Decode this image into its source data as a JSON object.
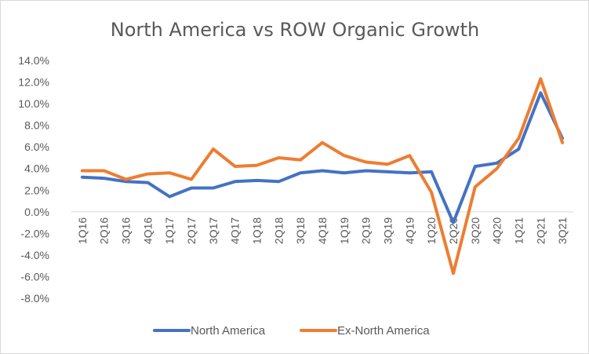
{
  "chart_data": {
    "type": "line",
    "title": "North America vs ROW Organic Growth",
    "xlabel": "",
    "ylabel": "",
    "categories": [
      "1Q16",
      "2Q16",
      "3Q16",
      "4Q16",
      "1Q17",
      "2Q17",
      "3Q17",
      "4Q17",
      "1Q18",
      "2Q18",
      "3Q18",
      "4Q18",
      "1Q19",
      "2Q19",
      "3Q19",
      "4Q19",
      "1Q20",
      "2Q20",
      "3Q20",
      "4Q20",
      "1Q21",
      "2Q21",
      "3Q21"
    ],
    "ylim": [
      -8,
      14
    ],
    "yticks": [
      -8,
      -6,
      -4,
      -2,
      0,
      2,
      4,
      6,
      8,
      10,
      12,
      14
    ],
    "ytick_labels": [
      "-8.0%",
      "-6.0%",
      "-4.0%",
      "-2.0%",
      "0.0%",
      "2.0%",
      "4.0%",
      "6.0%",
      "8.0%",
      "10.0%",
      "12.0%",
      "14.0%"
    ],
    "grid": false,
    "legend_position": "bottom",
    "series": [
      {
        "name": "North America",
        "color": "#4472c4",
        "values": [
          3.2,
          3.1,
          2.8,
          2.7,
          1.4,
          2.2,
          2.2,
          2.8,
          2.9,
          2.8,
          3.6,
          3.8,
          3.6,
          3.8,
          3.7,
          3.6,
          3.7,
          -1.0,
          4.2,
          4.5,
          5.8,
          11.0,
          6.8
        ]
      },
      {
        "name": "Ex-North America",
        "color": "#ed7d31",
        "values": [
          3.8,
          3.8,
          3.0,
          3.5,
          3.6,
          3.0,
          5.8,
          4.2,
          4.3,
          5.0,
          4.8,
          6.4,
          5.2,
          4.6,
          4.4,
          5.2,
          1.8,
          -5.7,
          2.3,
          4.0,
          6.8,
          12.3,
          6.4
        ]
      }
    ]
  }
}
